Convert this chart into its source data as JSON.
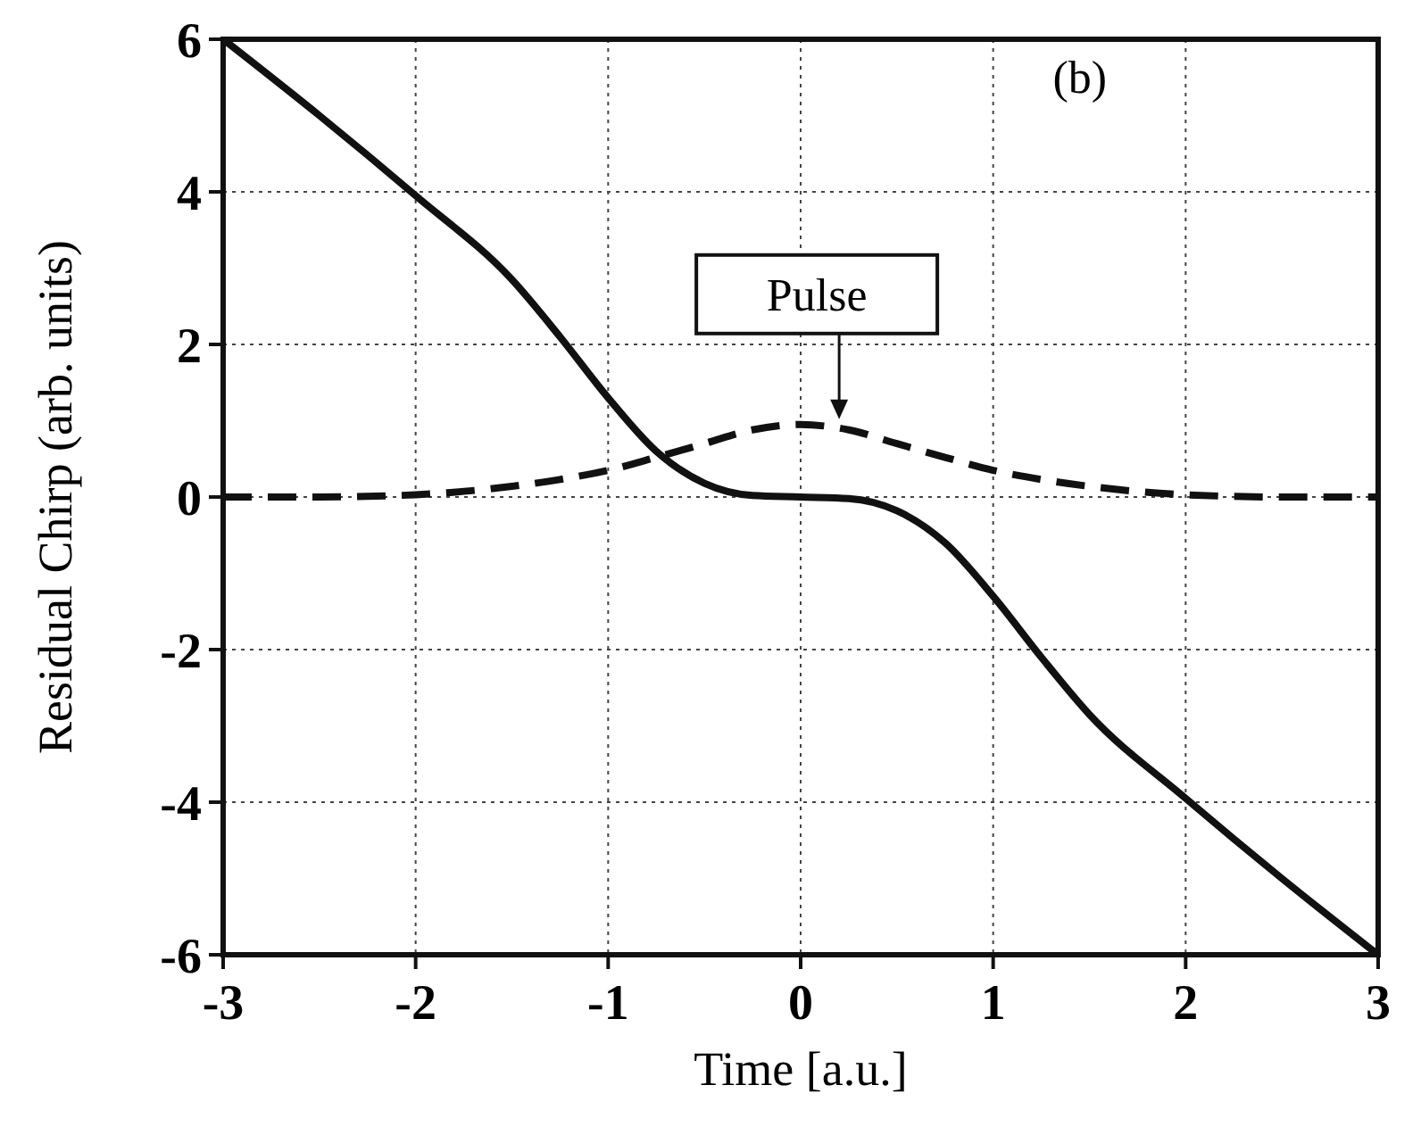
{
  "chart_data": {
    "type": "line",
    "xlabel": "Time [a.u.]",
    "ylabel": "Residual Chirp (arb. units)",
    "xlim": [
      -3,
      3
    ],
    "ylim": [
      -6,
      6
    ],
    "xticks": [
      -3,
      -2,
      -1,
      0,
      1,
      2,
      3
    ],
    "yticks": [
      -6,
      -4,
      -2,
      0,
      2,
      4,
      6
    ],
    "grid": true,
    "series": [
      {
        "color": "#111111",
        "line_style": "solid",
        "x": [
          -3,
          -2.5,
          -2,
          -1.5,
          -1.25,
          -1,
          -0.75,
          -0.5,
          -0.25,
          0,
          0.25,
          0.5,
          0.75,
          1,
          1.25,
          1.5,
          2,
          2.5,
          3
        ],
        "values": [
          6,
          5.0,
          3.95,
          2.85,
          2.1,
          1.3,
          0.6,
          0.18,
          0.02,
          0,
          -0.02,
          -0.18,
          -0.6,
          -1.3,
          -2.1,
          -2.85,
          -3.95,
          -5.0,
          -6
        ]
      },
      {
        "color": "#111111",
        "line_style": "dashed",
        "x": [
          -3,
          -2.5,
          -2,
          -1.5,
          -1.25,
          -1,
          -0.75,
          -0.5,
          -0.25,
          0,
          0.25,
          0.5,
          0.75,
          1,
          1.25,
          1.5,
          2,
          2.5,
          3
        ],
        "values": [
          0,
          0,
          0.03,
          0.14,
          0.23,
          0.35,
          0.52,
          0.7,
          0.88,
          0.95,
          0.88,
          0.7,
          0.52,
          0.35,
          0.23,
          0.14,
          0.03,
          0,
          0
        ]
      }
    ],
    "annotations": [
      {
        "text": "Pulse",
        "x": 0.2,
        "y": 0.95
      },
      "(b)"
    ]
  }
}
